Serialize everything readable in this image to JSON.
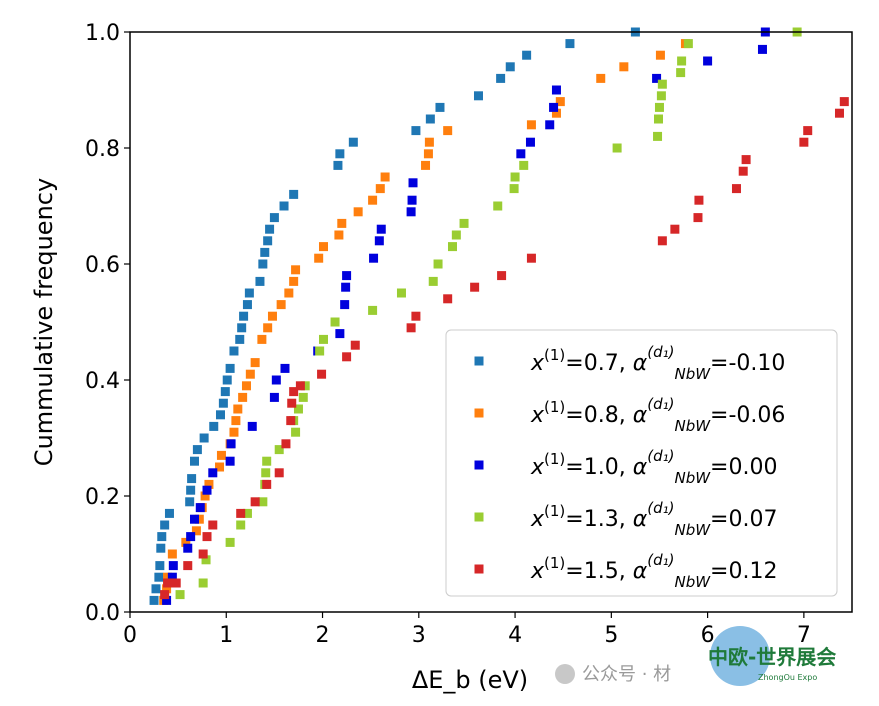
{
  "chart_data": {
    "type": "scatter",
    "xlabel": "ΔE_b (eV)",
    "ylabel": "Cummulative frequency",
    "xlim": [
      0,
      7.5
    ],
    "ylim": [
      0,
      1.0
    ],
    "xticks": [
      "0",
      "1",
      "2",
      "3",
      "4",
      "5",
      "6",
      "7"
    ],
    "yticks": [
      "0.0",
      "0.2",
      "0.4",
      "0.6",
      "0.8",
      "1.0"
    ],
    "grid": false,
    "legend_position": "lower-right",
    "series": [
      {
        "name": "x(1)=0.7, α(d1)NbW=-0.10",
        "legend": {
          "x_prefix": "x",
          "x_sup": "(1)",
          "x_val": "=0.7, ",
          "alpha": "α",
          "alpha_sup": "(d₁)",
          "alpha_sub": "NbW",
          "alpha_val": "=-0.10"
        },
        "color": "#1f77b4",
        "points": [
          [
            0.25,
            0.02
          ],
          [
            0.27,
            0.04
          ],
          [
            0.3,
            0.06
          ],
          [
            0.31,
            0.08
          ],
          [
            0.32,
            0.11
          ],
          [
            0.33,
            0.13
          ],
          [
            0.36,
            0.15
          ],
          [
            0.41,
            0.17
          ],
          [
            0.62,
            0.19
          ],
          [
            0.63,
            0.21
          ],
          [
            0.64,
            0.23
          ],
          [
            0.67,
            0.26
          ],
          [
            0.7,
            0.28
          ],
          [
            0.77,
            0.3
          ],
          [
            0.87,
            0.32
          ],
          [
            0.94,
            0.34
          ],
          [
            0.97,
            0.36
          ],
          [
            0.99,
            0.38
          ],
          [
            1.01,
            0.4
          ],
          [
            1.04,
            0.42
          ],
          [
            1.08,
            0.45
          ],
          [
            1.14,
            0.47
          ],
          [
            1.16,
            0.49
          ],
          [
            1.18,
            0.51
          ],
          [
            1.22,
            0.53
          ],
          [
            1.24,
            0.55
          ],
          [
            1.35,
            0.57
          ],
          [
            1.38,
            0.6
          ],
          [
            1.4,
            0.62
          ],
          [
            1.43,
            0.64
          ],
          [
            1.45,
            0.66
          ],
          [
            1.5,
            0.68
          ],
          [
            1.6,
            0.7
          ],
          [
            1.7,
            0.72
          ],
          [
            2.16,
            0.77
          ],
          [
            2.18,
            0.79
          ],
          [
            2.32,
            0.81
          ],
          [
            2.97,
            0.83
          ],
          [
            3.12,
            0.85
          ],
          [
            3.22,
            0.87
          ],
          [
            3.62,
            0.89
          ],
          [
            3.85,
            0.92
          ],
          [
            3.95,
            0.94
          ],
          [
            4.12,
            0.96
          ],
          [
            4.57,
            0.98
          ],
          [
            5.25,
            1.0
          ]
        ]
      },
      {
        "name": "x(1)=0.8, α(d1)NbW=-0.06",
        "legend": {
          "x_prefix": "x",
          "x_sup": "(1)",
          "x_val": "=0.8, ",
          "alpha": "α",
          "alpha_sup": "(d₁)",
          "alpha_sub": "NbW",
          "alpha_val": "=-0.06"
        },
        "color": "#ff7f0e",
        "points": [
          [
            0.35,
            0.02
          ],
          [
            0.38,
            0.04
          ],
          [
            0.39,
            0.06
          ],
          [
            0.44,
            0.1
          ],
          [
            0.58,
            0.12
          ],
          [
            0.69,
            0.14
          ],
          [
            0.72,
            0.16
          ],
          [
            0.75,
            0.18
          ],
          [
            0.78,
            0.2
          ],
          [
            0.82,
            0.22
          ],
          [
            0.93,
            0.25
          ],
          [
            0.95,
            0.27
          ],
          [
            1.04,
            0.29
          ],
          [
            1.08,
            0.31
          ],
          [
            1.1,
            0.33
          ],
          [
            1.12,
            0.35
          ],
          [
            1.17,
            0.37
          ],
          [
            1.21,
            0.39
          ],
          [
            1.25,
            0.41
          ],
          [
            1.3,
            0.43
          ],
          [
            1.37,
            0.47
          ],
          [
            1.43,
            0.49
          ],
          [
            1.48,
            0.51
          ],
          [
            1.57,
            0.53
          ],
          [
            1.65,
            0.55
          ],
          [
            1.7,
            0.57
          ],
          [
            1.72,
            0.59
          ],
          [
            1.96,
            0.61
          ],
          [
            2.01,
            0.63
          ],
          [
            2.17,
            0.65
          ],
          [
            2.2,
            0.67
          ],
          [
            2.37,
            0.69
          ],
          [
            2.52,
            0.71
          ],
          [
            2.6,
            0.73
          ],
          [
            2.65,
            0.75
          ],
          [
            3.07,
            0.77
          ],
          [
            3.1,
            0.79
          ],
          [
            3.11,
            0.81
          ],
          [
            3.3,
            0.83
          ],
          [
            4.17,
            0.84
          ],
          [
            4.43,
            0.86
          ],
          [
            4.47,
            0.88
          ],
          [
            4.89,
            0.92
          ],
          [
            5.13,
            0.94
          ],
          [
            5.51,
            0.96
          ],
          [
            5.77,
            0.98
          ]
        ]
      },
      {
        "name": "x(1)=1.0, α(d1)NbW=0.00",
        "legend": {
          "x_prefix": "x",
          "x_sup": "(1)",
          "x_val": "=1.0, ",
          "alpha": "α",
          "alpha_sup": "(d₁)",
          "alpha_sub": "NbW",
          "alpha_val": "=0.00"
        },
        "color": "#0000dd",
        "points": [
          [
            0.38,
            0.02
          ],
          [
            0.44,
            0.06
          ],
          [
            0.45,
            0.08
          ],
          [
            0.6,
            0.11
          ],
          [
            0.63,
            0.13
          ],
          [
            0.67,
            0.16
          ],
          [
            0.73,
            0.18
          ],
          [
            0.8,
            0.21
          ],
          [
            0.86,
            0.24
          ],
          [
            1.04,
            0.26
          ],
          [
            1.05,
            0.29
          ],
          [
            1.27,
            0.32
          ],
          [
            1.5,
            0.37
          ],
          [
            1.52,
            0.4
          ],
          [
            1.61,
            0.42
          ],
          [
            1.95,
            0.45
          ],
          [
            2.18,
            0.48
          ],
          [
            2.23,
            0.53
          ],
          [
            2.24,
            0.56
          ],
          [
            2.25,
            0.58
          ],
          [
            2.53,
            0.61
          ],
          [
            2.59,
            0.64
          ],
          [
            2.61,
            0.66
          ],
          [
            2.92,
            0.69
          ],
          [
            2.93,
            0.71
          ],
          [
            2.94,
            0.74
          ],
          [
            4.06,
            0.79
          ],
          [
            4.16,
            0.81
          ],
          [
            4.36,
            0.84
          ],
          [
            4.4,
            0.87
          ],
          [
            4.43,
            0.9
          ],
          [
            5.47,
            0.92
          ],
          [
            6.0,
            0.95
          ],
          [
            6.57,
            0.97
          ],
          [
            6.6,
            1.0
          ]
        ]
      },
      {
        "name": "x(1)=1.3, α(d1)NbW=0.07",
        "legend": {
          "x_prefix": "x",
          "x_sup": "(1)",
          "x_val": "=1.3, ",
          "alpha": "α",
          "alpha_sup": "(d₁)",
          "alpha_sub": "NbW",
          "alpha_val": "=0.07"
        },
        "color": "#9acd32",
        "points": [
          [
            0.52,
            0.03
          ],
          [
            0.76,
            0.05
          ],
          [
            0.79,
            0.09
          ],
          [
            1.04,
            0.12
          ],
          [
            1.15,
            0.15
          ],
          [
            1.22,
            0.17
          ],
          [
            1.38,
            0.19
          ],
          [
            1.4,
            0.22
          ],
          [
            1.41,
            0.24
          ],
          [
            1.42,
            0.26
          ],
          [
            1.55,
            0.28
          ],
          [
            1.72,
            0.31
          ],
          [
            1.7,
            0.33
          ],
          [
            1.75,
            0.35
          ],
          [
            1.8,
            0.37
          ],
          [
            1.82,
            0.39
          ],
          [
            1.97,
            0.45
          ],
          [
            2.01,
            0.47
          ],
          [
            2.13,
            0.5
          ],
          [
            2.52,
            0.52
          ],
          [
            2.82,
            0.55
          ],
          [
            3.15,
            0.57
          ],
          [
            3.2,
            0.6
          ],
          [
            3.35,
            0.63
          ],
          [
            3.39,
            0.65
          ],
          [
            3.47,
            0.67
          ],
          [
            3.82,
            0.7
          ],
          [
            3.99,
            0.73
          ],
          [
            4.0,
            0.75
          ],
          [
            4.09,
            0.77
          ],
          [
            5.06,
            0.8
          ],
          [
            5.48,
            0.82
          ],
          [
            5.49,
            0.85
          ],
          [
            5.5,
            0.87
          ],
          [
            5.52,
            0.89
          ],
          [
            5.53,
            0.91
          ],
          [
            5.72,
            0.93
          ],
          [
            5.73,
            0.95
          ],
          [
            5.8,
            0.98
          ],
          [
            6.93,
            1.0
          ]
        ]
      },
      {
        "name": "x(1)=1.5, α(d1)NbW=0.12",
        "legend": {
          "x_prefix": "x",
          "x_sup": "(1)",
          "x_val": "=1.5, ",
          "alpha": "α",
          "alpha_sup": "(d₁)",
          "alpha_sub": "NbW",
          "alpha_val": "=0.12"
        },
        "color": "#d62728",
        "points": [
          [
            0.36,
            0.03
          ],
          [
            0.39,
            0.05
          ],
          [
            0.48,
            0.05
          ],
          [
            0.6,
            0.08
          ],
          [
            0.76,
            0.1
          ],
          [
            0.8,
            0.13
          ],
          [
            0.86,
            0.15
          ],
          [
            1.15,
            0.17
          ],
          [
            1.3,
            0.19
          ],
          [
            1.42,
            0.22
          ],
          [
            1.55,
            0.24
          ],
          [
            1.62,
            0.29
          ],
          [
            1.67,
            0.33
          ],
          [
            1.68,
            0.36
          ],
          [
            1.7,
            0.38
          ],
          [
            1.77,
            0.39
          ],
          [
            1.99,
            0.41
          ],
          [
            2.25,
            0.44
          ],
          [
            2.34,
            0.46
          ],
          [
            2.92,
            0.49
          ],
          [
            2.97,
            0.51
          ],
          [
            3.3,
            0.54
          ],
          [
            3.58,
            0.56
          ],
          [
            3.86,
            0.58
          ],
          [
            4.17,
            0.61
          ],
          [
            5.53,
            0.64
          ],
          [
            5.66,
            0.66
          ],
          [
            5.9,
            0.68
          ],
          [
            5.91,
            0.71
          ],
          [
            6.3,
            0.73
          ],
          [
            6.37,
            0.76
          ],
          [
            6.4,
            0.78
          ],
          [
            7.0,
            0.81
          ],
          [
            7.04,
            0.83
          ],
          [
            7.37,
            0.86
          ],
          [
            7.42,
            0.88
          ]
        ]
      }
    ]
  },
  "watermark": {
    "text": "公众号 · 材",
    "logo": "中欧-世界展会",
    "logo_sub": "ZhongOu Expo"
  }
}
